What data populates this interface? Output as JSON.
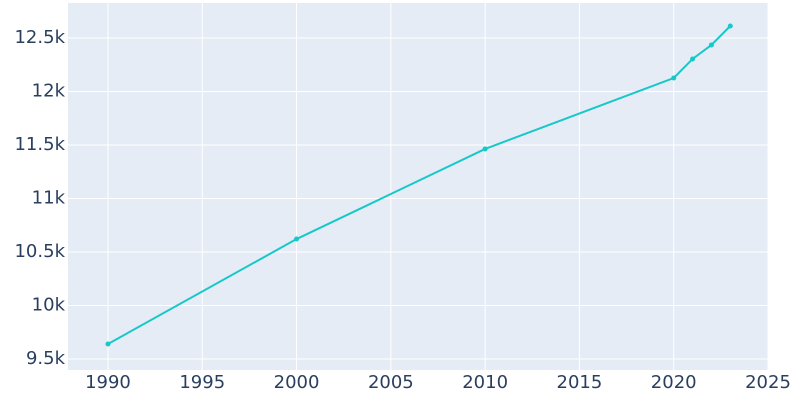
{
  "chart_data": {
    "type": "line",
    "x": [
      1990,
      2000,
      2010,
      2020,
      2021,
      2022,
      2023
    ],
    "series": [
      {
        "color": "#17c8c8",
        "values": [
          9640,
          10621,
          11463,
          12126,
          12304,
          12435,
          12612
        ]
      }
    ],
    "xlim": [
      1987.88,
      2025
    ],
    "xticks": [
      1990,
      1995,
      2000,
      2005,
      2010,
      2015,
      2020,
      2025
    ],
    "ylim": [
      9397,
      12827
    ],
    "yticks": [
      {
        "value": 9500,
        "label": "9.5k"
      },
      {
        "value": 10000,
        "label": "10k"
      },
      {
        "value": 10500,
        "label": "10.5k"
      },
      {
        "value": 11000,
        "label": "11k"
      },
      {
        "value": 11500,
        "label": "11.5k"
      },
      {
        "value": 12000,
        "label": "12k"
      },
      {
        "value": 12500,
        "label": "12.5k"
      }
    ],
    "grid": true
  }
}
